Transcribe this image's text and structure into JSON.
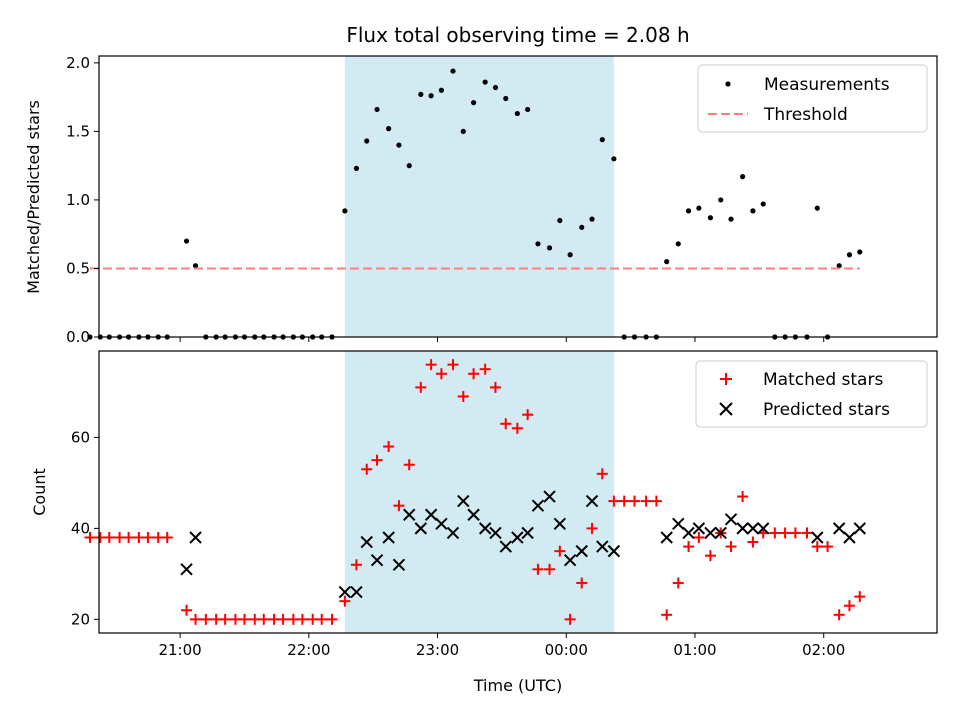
{
  "chart_data": [
    {
      "panel": "top",
      "type": "scatter",
      "title": "Flux total observing time = 2.08 h",
      "xlabel": "",
      "ylabel": "Matched/Predicted stars",
      "ylim": [
        0,
        2.05
      ],
      "yticks": [
        0.0,
        0.5,
        1.0,
        1.5,
        2.0
      ],
      "ytick_labels": [
        "0.0",
        "0.5",
        "1.0",
        "1.5",
        "2.0"
      ],
      "xlim": [
        20.37,
        26.88
      ],
      "xticks": [
        21,
        22,
        23,
        24,
        25,
        26
      ],
      "legend": {
        "position": "top-right",
        "entries": [
          "Measurements",
          "Threshold"
        ]
      },
      "shaded_interval": {
        "x": [
          22.28,
          24.37
        ],
        "color": "#add8e6"
      },
      "series": [
        {
          "name": "Measurements",
          "marker": "dot",
          "color": "#000000",
          "points": [
            [
              20.3,
              0
            ],
            [
              20.38,
              0
            ],
            [
              20.45,
              0
            ],
            [
              20.53,
              0
            ],
            [
              20.6,
              0
            ],
            [
              20.68,
              0
            ],
            [
              20.75,
              0
            ],
            [
              20.83,
              0
            ],
            [
              20.9,
              0
            ],
            [
              21.05,
              0.7
            ],
            [
              21.12,
              0.52
            ],
            [
              21.2,
              0
            ],
            [
              21.28,
              0
            ],
            [
              21.35,
              0
            ],
            [
              21.43,
              0
            ],
            [
              21.5,
              0
            ],
            [
              21.58,
              0
            ],
            [
              21.65,
              0
            ],
            [
              21.73,
              0
            ],
            [
              21.8,
              0
            ],
            [
              21.88,
              0
            ],
            [
              21.95,
              0
            ],
            [
              22.03,
              0
            ],
            [
              22.1,
              0
            ],
            [
              22.18,
              0
            ],
            [
              22.28,
              0.92
            ],
            [
              22.37,
              1.23
            ],
            [
              22.45,
              1.43
            ],
            [
              22.53,
              1.66
            ],
            [
              22.62,
              1.52
            ],
            [
              22.7,
              1.4
            ],
            [
              22.78,
              1.25
            ],
            [
              22.87,
              1.77
            ],
            [
              22.95,
              1.76
            ],
            [
              23.03,
              1.8
            ],
            [
              23.12,
              1.94
            ],
            [
              23.2,
              1.5
            ],
            [
              23.28,
              1.71
            ],
            [
              23.37,
              1.86
            ],
            [
              23.45,
              1.82
            ],
            [
              23.53,
              1.74
            ],
            [
              23.62,
              1.63
            ],
            [
              23.7,
              1.66
            ],
            [
              23.78,
              0.68
            ],
            [
              23.87,
              0.65
            ],
            [
              23.95,
              0.85
            ],
            [
              24.03,
              0.6
            ],
            [
              24.12,
              0.8
            ],
            [
              24.2,
              0.86
            ],
            [
              24.28,
              1.44
            ],
            [
              24.37,
              1.3
            ],
            [
              24.45,
              0
            ],
            [
              24.53,
              0
            ],
            [
              24.62,
              0
            ],
            [
              24.7,
              0
            ],
            [
              24.78,
              0.55
            ],
            [
              24.87,
              0.68
            ],
            [
              24.95,
              0.92
            ],
            [
              25.03,
              0.94
            ],
            [
              25.12,
              0.87
            ],
            [
              25.2,
              1.0
            ],
            [
              25.28,
              0.86
            ],
            [
              25.37,
              1.17
            ],
            [
              25.45,
              0.92
            ],
            [
              25.53,
              0.97
            ],
            [
              25.62,
              0
            ],
            [
              25.7,
              0
            ],
            [
              25.78,
              0
            ],
            [
              25.87,
              0
            ],
            [
              25.95,
              0.94
            ],
            [
              26.03,
              0
            ],
            [
              26.12,
              0.52
            ],
            [
              26.2,
              0.6
            ],
            [
              26.28,
              0.62
            ]
          ]
        },
        {
          "name": "Threshold",
          "marker": "dashed-line",
          "color": "#ff7f7f",
          "points": [
            [
              20.3,
              0.5
            ],
            [
              26.28,
              0.5
            ]
          ]
        }
      ]
    },
    {
      "panel": "bottom",
      "type": "scatter",
      "title": "",
      "xlabel": "Time (UTC)",
      "ylabel": "Count",
      "ylim": [
        17,
        79
      ],
      "yticks": [
        20,
        40,
        60
      ],
      "ytick_labels": [
        "20",
        "40",
        "60"
      ],
      "xlim": [
        20.37,
        26.88
      ],
      "xticks": [
        21,
        22,
        23,
        24,
        25,
        26
      ],
      "xtick_labels": [
        "21:00",
        "22:00",
        "23:00",
        "00:00",
        "01:00",
        "02:00"
      ],
      "legend": {
        "position": "top-right",
        "entries": [
          "Matched stars",
          "Predicted stars"
        ]
      },
      "shaded_interval": {
        "x": [
          22.28,
          24.37
        ],
        "color": "#add8e6"
      },
      "series": [
        {
          "name": "Matched stars",
          "marker": "plus",
          "color": "#ff0000",
          "points": [
            [
              20.3,
              38
            ],
            [
              20.38,
              38
            ],
            [
              20.45,
              38
            ],
            [
              20.53,
              38
            ],
            [
              20.6,
              38
            ],
            [
              20.68,
              38
            ],
            [
              20.75,
              38
            ],
            [
              20.83,
              38
            ],
            [
              20.9,
              38
            ],
            [
              21.05,
              22
            ],
            [
              21.12,
              20
            ],
            [
              21.2,
              20
            ],
            [
              21.28,
              20
            ],
            [
              21.35,
              20
            ],
            [
              21.43,
              20
            ],
            [
              21.5,
              20
            ],
            [
              21.58,
              20
            ],
            [
              21.65,
              20
            ],
            [
              21.73,
              20
            ],
            [
              21.8,
              20
            ],
            [
              21.88,
              20
            ],
            [
              21.95,
              20
            ],
            [
              22.03,
              20
            ],
            [
              22.1,
              20
            ],
            [
              22.18,
              20
            ],
            [
              22.28,
              24
            ],
            [
              22.37,
              32
            ],
            [
              22.45,
              53
            ],
            [
              22.53,
              55
            ],
            [
              22.62,
              58
            ],
            [
              22.7,
              45
            ],
            [
              22.78,
              54
            ],
            [
              22.87,
              71
            ],
            [
              22.95,
              76
            ],
            [
              23.03,
              74
            ],
            [
              23.12,
              76
            ],
            [
              23.2,
              69
            ],
            [
              23.28,
              74
            ],
            [
              23.37,
              75
            ],
            [
              23.45,
              71
            ],
            [
              23.53,
              63
            ],
            [
              23.62,
              62
            ],
            [
              23.7,
              65
            ],
            [
              23.78,
              31
            ],
            [
              23.87,
              31
            ],
            [
              23.95,
              35
            ],
            [
              24.03,
              20
            ],
            [
              24.12,
              28
            ],
            [
              24.2,
              40
            ],
            [
              24.28,
              52
            ],
            [
              24.37,
              46
            ],
            [
              24.45,
              46
            ],
            [
              24.53,
              46
            ],
            [
              24.62,
              46
            ],
            [
              24.7,
              46
            ],
            [
              24.78,
              21
            ],
            [
              24.87,
              28
            ],
            [
              24.95,
              36
            ],
            [
              25.03,
              38
            ],
            [
              25.12,
              34
            ],
            [
              25.2,
              39
            ],
            [
              25.28,
              36
            ],
            [
              25.37,
              47
            ],
            [
              25.45,
              37
            ],
            [
              25.53,
              39
            ],
            [
              25.62,
              39
            ],
            [
              25.7,
              39
            ],
            [
              25.78,
              39
            ],
            [
              25.87,
              39
            ],
            [
              25.95,
              36
            ],
            [
              26.03,
              36
            ],
            [
              26.12,
              21
            ],
            [
              26.2,
              23
            ],
            [
              26.28,
              25
            ]
          ]
        },
        {
          "name": "Predicted stars",
          "marker": "x",
          "color": "#000000",
          "points": [
            [
              21.05,
              31
            ],
            [
              21.12,
              38
            ],
            [
              22.28,
              26
            ],
            [
              22.37,
              26
            ],
            [
              22.45,
              37
            ],
            [
              22.53,
              33
            ],
            [
              22.62,
              38
            ],
            [
              22.7,
              32
            ],
            [
              22.78,
              43
            ],
            [
              22.87,
              40
            ],
            [
              22.95,
              43
            ],
            [
              23.03,
              41
            ],
            [
              23.12,
              39
            ],
            [
              23.2,
              46
            ],
            [
              23.28,
              43
            ],
            [
              23.37,
              40
            ],
            [
              23.45,
              39
            ],
            [
              23.53,
              36
            ],
            [
              23.62,
              38
            ],
            [
              23.7,
              39
            ],
            [
              23.78,
              45
            ],
            [
              23.87,
              47
            ],
            [
              23.95,
              41
            ],
            [
              24.03,
              33
            ],
            [
              24.12,
              35
            ],
            [
              24.2,
              46
            ],
            [
              24.28,
              36
            ],
            [
              24.37,
              35
            ],
            [
              24.78,
              38
            ],
            [
              24.87,
              41
            ],
            [
              24.95,
              39
            ],
            [
              25.03,
              40
            ],
            [
              25.12,
              39
            ],
            [
              25.2,
              39
            ],
            [
              25.28,
              42
            ],
            [
              25.37,
              40
            ],
            [
              25.45,
              40
            ],
            [
              25.53,
              40
            ],
            [
              25.95,
              38
            ],
            [
              26.12,
              40
            ],
            [
              26.2,
              38
            ],
            [
              26.28,
              40
            ]
          ]
        }
      ]
    }
  ]
}
